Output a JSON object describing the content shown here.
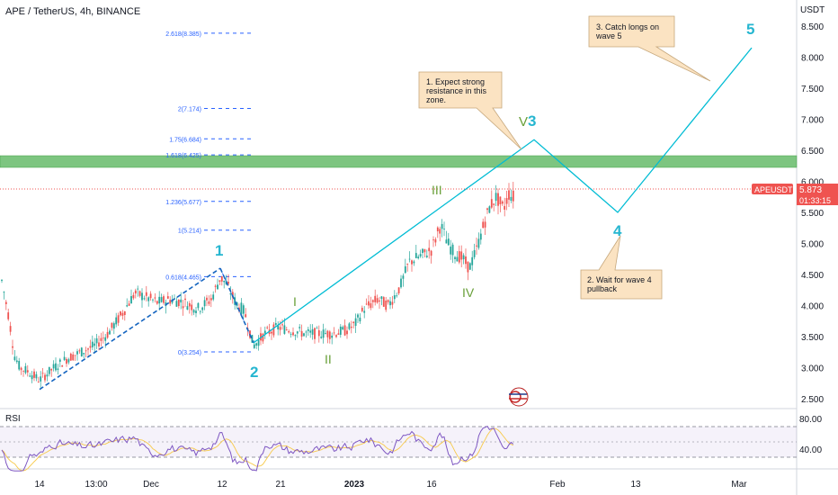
{
  "header": {
    "title": "APE / TetherUS, 4h, BINANCE",
    "currency": "USDT"
  },
  "price_tag": {
    "symbol": "APEUSDT",
    "price": "5.873",
    "countdown": "01:33:15"
  },
  "rsi": {
    "label": "RSI",
    "ticks": [
      "80.00",
      "40.00"
    ]
  },
  "colors": {
    "wave": "#00bcd4",
    "candle_up": "#26a69a",
    "candle_down": "#ef5350",
    "zone": "#66bb6a",
    "fib": "#2962ff",
    "rsi": "#7e57c2",
    "label_green": "#689f38"
  },
  "chart_data": {
    "type": "candlestick",
    "y_ticks": [
      "8.500",
      "8.000",
      "7.500",
      "7.000",
      "6.500",
      "6.000",
      "5.500",
      "5.000",
      "4.500",
      "4.000",
      "3.500",
      "3.000",
      "2.500"
    ],
    "x_ticks": [
      "14",
      "13:00",
      "Dec",
      "12",
      "21",
      "2023",
      "16",
      "Feb",
      "13",
      "Mar"
    ],
    "fib_levels": [
      {
        "label": "2.618(8.385)",
        "value": 8.385
      },
      {
        "label": "2(7.174)",
        "value": 7.174
      },
      {
        "label": "1.75(6.684)",
        "value": 6.684
      },
      {
        "label": "1.618(6.425)",
        "value": 6.425
      },
      {
        "label": "1.236(5.677)",
        "value": 5.677
      },
      {
        "label": "1(5.214)",
        "value": 5.214
      },
      {
        "label": "0.618(4.465)",
        "value": 4.465
      },
      {
        "label": "0(3.254)",
        "value": 3.254
      }
    ],
    "resistance_zone": [
      6.2,
      6.38
    ],
    "wave_labels": [
      {
        "text": "1",
        "kind": "major"
      },
      {
        "text": "2",
        "kind": "major"
      },
      {
        "text": "4",
        "kind": "major"
      },
      {
        "text": "5",
        "kind": "major"
      },
      {
        "text": "V",
        "kind": "minor"
      },
      {
        "text": "3",
        "kind": "major"
      },
      {
        "text": "I",
        "kind": "minor"
      },
      {
        "text": "II",
        "kind": "minor"
      },
      {
        "text": "III",
        "kind": "minor"
      },
      {
        "text": "IV",
        "kind": "minor"
      }
    ],
    "projection": [
      {
        "price": 2.65
      },
      {
        "price": 4.6
      },
      {
        "price": 3.4
      },
      {
        "price": 6.67
      },
      {
        "price": 5.5
      },
      {
        "price": 8.15
      }
    ],
    "notes": [
      {
        "lines": [
          "1. Expect strong",
          "resistance in this",
          "zone."
        ]
      },
      {
        "lines": [
          "2. Wait for wave 4",
          "pullback"
        ]
      },
      {
        "lines": [
          "3.  Catch longs on",
          "wave 5"
        ]
      }
    ]
  }
}
